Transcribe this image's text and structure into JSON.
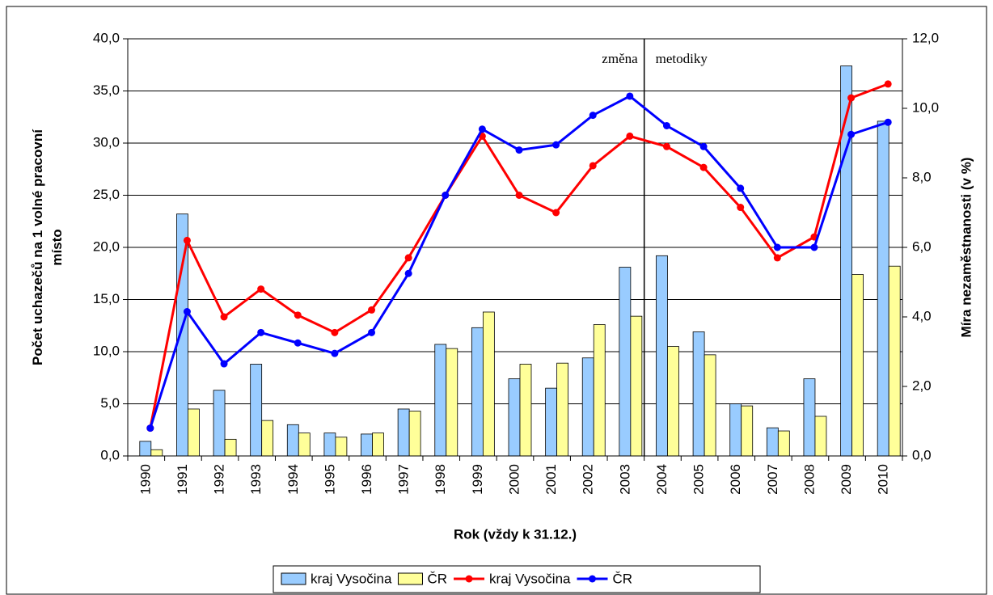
{
  "chart_data": {
    "type": "bar_line",
    "xlabel": "Rok (vždy k 31.12.)",
    "ylabel": [
      "Počet uchazečů na 1 volné pracovní",
      "místo"
    ],
    "y2label": "Míra nezaměstnanosti (v %)",
    "annotations": [
      "změna",
      "metodiky"
    ],
    "categories": [
      "1990",
      "1991",
      "1992",
      "1993",
      "1994",
      "1995",
      "1996",
      "1997",
      "1998",
      "1999",
      "2000",
      "2001",
      "2002",
      "2003",
      "2004",
      "2005",
      "2006",
      "2007",
      "2008",
      "2009",
      "2010"
    ],
    "ylim": [
      0,
      40
    ],
    "yticks": [
      {
        "value": 0,
        "label": "0,0"
      },
      {
        "value": 5,
        "label": "5,0"
      },
      {
        "value": 10,
        "label": "10,0"
      },
      {
        "value": 15,
        "label": "15,0"
      },
      {
        "value": 20,
        "label": "20,0"
      },
      {
        "value": 25,
        "label": "25,0"
      },
      {
        "value": 30,
        "label": "30,0"
      },
      {
        "value": 35,
        "label": "35,0"
      },
      {
        "value": 40,
        "label": "40,0"
      }
    ],
    "y2lim": [
      0,
      12
    ],
    "y2ticks": [
      {
        "value": 0,
        "label": "0,0"
      },
      {
        "value": 2,
        "label": "2,0"
      },
      {
        "value": 4,
        "label": "4,0"
      },
      {
        "value": 6,
        "label": "6,0"
      },
      {
        "value": 8,
        "label": "8,0"
      },
      {
        "value": 10,
        "label": "10,0"
      },
      {
        "value": 12,
        "label": "12,0"
      }
    ],
    "grid": true,
    "series": [
      {
        "name": "kraj Vysočina",
        "kind": "bar",
        "color": "#99ccff",
        "values": [
          1.4,
          23.2,
          6.3,
          8.8,
          3.0,
          2.2,
          2.1,
          4.5,
          10.7,
          12.3,
          7.4,
          6.5,
          9.4,
          18.1,
          19.2,
          11.9,
          5.0,
          2.7,
          7.4,
          37.4,
          32.1
        ]
      },
      {
        "name": "ČR",
        "kind": "bar",
        "color": "#ffff99",
        "values": [
          0.6,
          4.5,
          1.6,
          3.4,
          2.2,
          1.8,
          2.2,
          4.3,
          10.3,
          13.8,
          8.8,
          8.9,
          12.6,
          13.4,
          10.5,
          9.7,
          4.8,
          2.4,
          3.8,
          17.4,
          18.2
        ]
      },
      {
        "name": "kraj Vysočina",
        "kind": "line",
        "axis": "y2",
        "color": "#ff0000",
        "values": [
          0.8,
          6.2,
          4.0,
          4.8,
          4.05,
          3.55,
          4.2,
          5.7,
          7.5,
          9.2,
          7.5,
          7.0,
          8.35,
          9.2,
          8.9,
          8.3,
          7.15,
          5.7,
          6.3,
          10.3,
          10.7
        ]
      },
      {
        "name": "ČR",
        "kind": "line",
        "axis": "y2",
        "color": "#0000ff",
        "values": [
          0.8,
          4.15,
          2.65,
          3.55,
          3.25,
          2.95,
          3.55,
          5.25,
          7.5,
          9.4,
          8.8,
          8.95,
          9.8,
          10.35,
          9.5,
          8.9,
          7.7,
          6.0,
          6.0,
          9.25,
          9.6
        ]
      }
    ]
  }
}
